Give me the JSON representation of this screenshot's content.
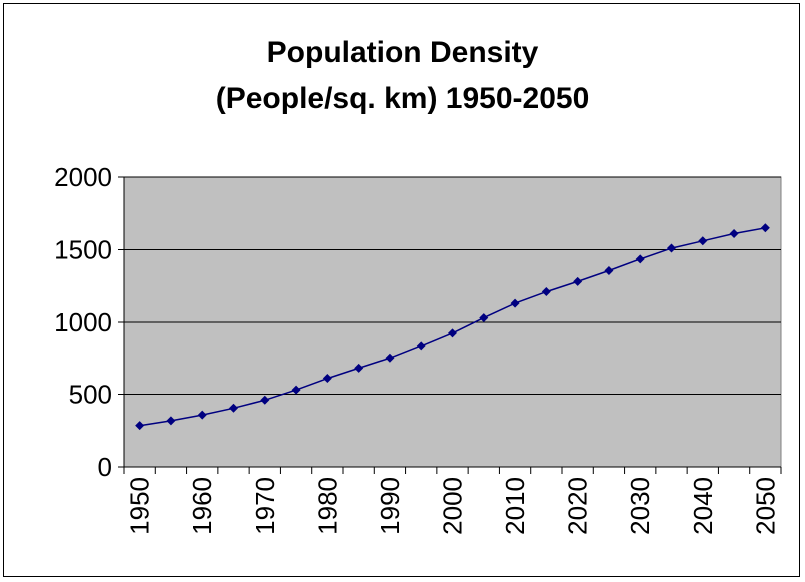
{
  "chart_data": {
    "type": "line",
    "title": "Population Density",
    "subtitle": "(People/sq. km) 1950-2050",
    "xlabel": "",
    "ylabel": "",
    "x": [
      1950,
      1955,
      1960,
      1965,
      1970,
      1975,
      1980,
      1985,
      1990,
      1995,
      2000,
      2005,
      2010,
      2015,
      2020,
      2025,
      2030,
      2035,
      2040,
      2045,
      2050
    ],
    "x_tick_labels": [
      "1950",
      "1960",
      "1970",
      "1980",
      "1990",
      "2000",
      "2010",
      "2020",
      "2030",
      "2040",
      "2050"
    ],
    "y_tick_labels": [
      "0",
      "500",
      "1000",
      "1500",
      "2000"
    ],
    "ylim": [
      0,
      2000
    ],
    "grid": true,
    "series": [
      {
        "values": [
          285,
          318,
          358,
          405,
          460,
          530,
          610,
          680,
          750,
          835,
          925,
          1030,
          1130,
          1210,
          1280,
          1355,
          1435,
          1510,
          1560,
          1610,
          1650
        ]
      }
    ],
    "colors": {
      "plot_background": "#c0c0c0",
      "line": "#000080",
      "grid": "#000000"
    }
  }
}
